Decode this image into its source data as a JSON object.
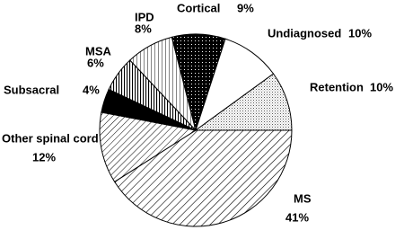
{
  "chart_data": {
    "type": "pie",
    "categories": [
      "MS",
      "Other spinal cord",
      "Subsacral",
      "MSA",
      "IPD",
      "Cortical",
      "Undiagnosed",
      "Retention"
    ],
    "values": [
      41,
      12,
      4,
      6,
      8,
      9,
      10,
      10
    ],
    "value_labels": [
      "41%",
      "12%",
      "4%",
      "6%",
      "8%",
      "9%",
      "10%",
      "10%"
    ]
  }
}
